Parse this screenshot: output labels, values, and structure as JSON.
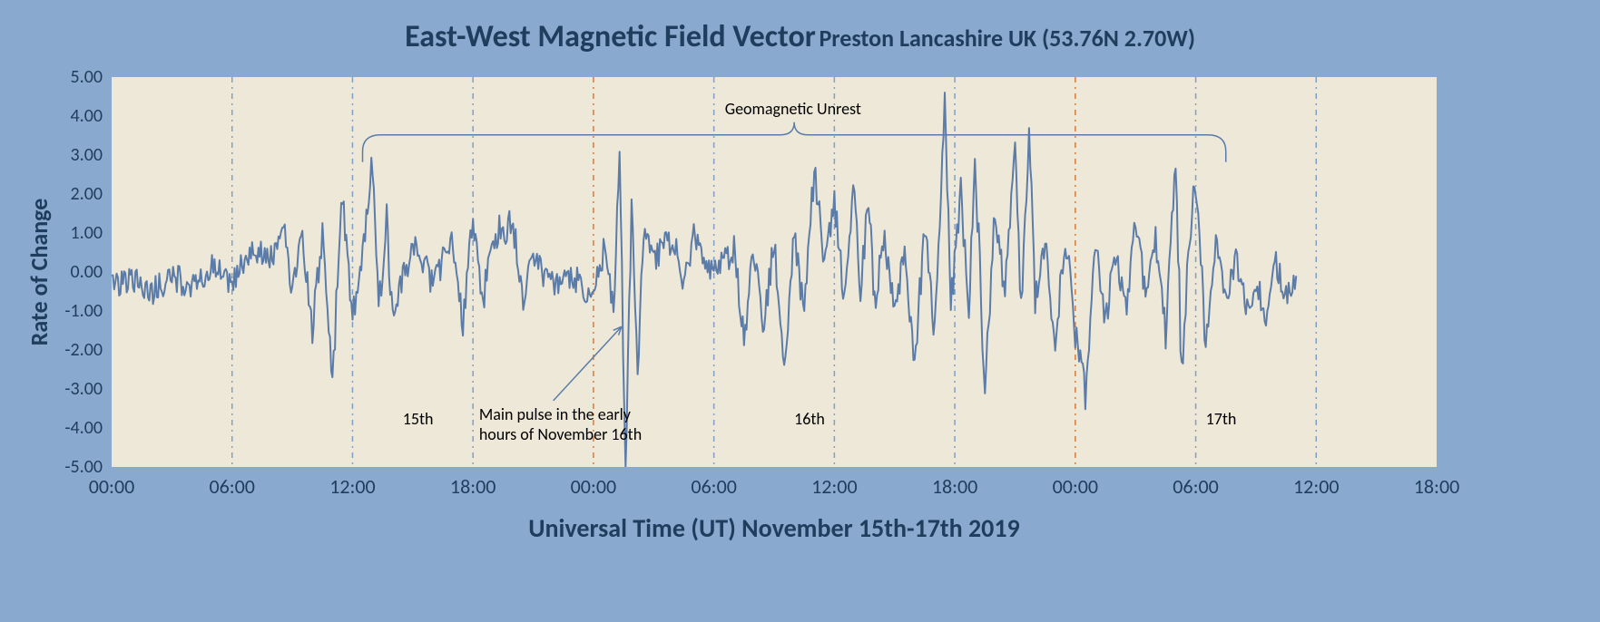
{
  "title_main": "East-West Magnetic Field Vector",
  "title_sub": "Preston Lancashire UK (53.76N 2.70W)",
  "ylabel": "Rate of Change",
  "xlabel": "Universal Time (UT) November 15th-17th 2019",
  "chart": {
    "type": "line",
    "background_color": "#eee8d8",
    "page_background": "#8aa9ce",
    "line_color": "#5b7ca8",
    "line_width": 2,
    "grid_color_blue": "#7f9fc9",
    "grid_color_orange": "#d67a3a",
    "grid_dash": "6,5,2,5",
    "text_color": "#1f3d5c",
    "title_fontsize_main": 34,
    "title_fontsize_sub": 26,
    "axis_label_fontsize": 26,
    "tick_fontsize": 20,
    "annot_fontsize": 18,
    "ylim": [
      -5,
      5
    ],
    "yticks": [
      -5,
      -4,
      -3,
      -2,
      -1,
      0,
      1,
      2,
      3,
      4,
      5
    ],
    "ytick_labels": [
      "-5.00",
      "-4.00",
      "-3.00",
      "-2.00",
      "-1.00",
      "0.00",
      "1.00",
      "2.00",
      "3.00",
      "4.00",
      "5.00"
    ],
    "xlim_hours": [
      0,
      66
    ],
    "xticks_hours": [
      0,
      6,
      12,
      18,
      24,
      30,
      36,
      42,
      48,
      54,
      60,
      66
    ],
    "xtick_labels": [
      "00:00",
      "06:00",
      "12:00",
      "18:00",
      "00:00",
      "06:00",
      "12:00",
      "18:00",
      "00:00",
      "06:00",
      "12:00",
      "18:00"
    ],
    "x_data_max_hours": 59,
    "grid_lines": [
      {
        "hour": 6,
        "color": "blue"
      },
      {
        "hour": 12,
        "color": "blue"
      },
      {
        "hour": 18,
        "color": "blue"
      },
      {
        "hour": 24,
        "color": "orange"
      },
      {
        "hour": 30,
        "color": "blue"
      },
      {
        "hour": 36,
        "color": "blue"
      },
      {
        "hour": 42,
        "color": "blue"
      },
      {
        "hour": 48,
        "color": "orange"
      },
      {
        "hour": 54,
        "color": "blue"
      },
      {
        "hour": 60,
        "color": "blue"
      }
    ],
    "annotations": {
      "geomagnetic_unrest": "Geomagnetic Unrest",
      "main_pulse_l1": "Main pulse in the early",
      "main_pulse_l2": "hours of November 16th",
      "day15": "15th",
      "day16": "16th",
      "day17": "17th"
    },
    "bracket": {
      "start_hour": 12.5,
      "end_hour": 55.5,
      "y_value": 3.1,
      "color": "#5b7ca8"
    },
    "arrow": {
      "from_hour": 22,
      "from_y": -3.3,
      "to_hour": 25.4,
      "to_y": -1.4,
      "color": "#5b7ca8"
    },
    "seed": 20191115,
    "key_points_hours_values": [
      [
        0,
        -0.3
      ],
      [
        1,
        -0.2
      ],
      [
        2,
        -0.5
      ],
      [
        3,
        -0.1
      ],
      [
        4,
        -0.4
      ],
      [
        5,
        0.1
      ],
      [
        6,
        -0.3
      ],
      [
        7,
        0.7
      ],
      [
        8,
        0.3
      ],
      [
        8.5,
        1.5
      ],
      [
        9,
        -0.5
      ],
      [
        9.5,
        0.9
      ],
      [
        10,
        -1.5
      ],
      [
        10.5,
        1.0
      ],
      [
        11,
        -2.7
      ],
      [
        11.5,
        2.0
      ],
      [
        12,
        -1.2
      ],
      [
        12.5,
        0.5
      ],
      [
        13,
        2.9
      ],
      [
        13.3,
        -1.0
      ],
      [
        13.7,
        1.3
      ],
      [
        14,
        -1.3
      ],
      [
        15,
        0.8
      ],
      [
        16,
        -0.3
      ],
      [
        17,
        0.9
      ],
      [
        17.5,
        -1.5
      ],
      [
        18,
        1.5
      ],
      [
        18.5,
        -0.8
      ],
      [
        19,
        1.0
      ],
      [
        20,
        1.2
      ],
      [
        20.5,
        -0.6
      ],
      [
        21,
        0.3
      ],
      [
        22,
        -0.4
      ],
      [
        23,
        -0.1
      ],
      [
        24,
        -0.7
      ],
      [
        24.5,
        0.5
      ],
      [
        25,
        -0.9
      ],
      [
        25.3,
        3.3
      ],
      [
        25.6,
        -4.9
      ],
      [
        25.9,
        1.5
      ],
      [
        26.2,
        -2.4
      ],
      [
        26.5,
        1.0
      ],
      [
        27,
        0.3
      ],
      [
        28,
        0.9
      ],
      [
        28.5,
        -0.4
      ],
      [
        29,
        1.0
      ],
      [
        30,
        -0.1
      ],
      [
        31,
        0.6
      ],
      [
        31.5,
        -1.7
      ],
      [
        32,
        0.6
      ],
      [
        32.5,
        -1.4
      ],
      [
        33,
        0.8
      ],
      [
        33.5,
        -2.6
      ],
      [
        34,
        1.2
      ],
      [
        34.5,
        -1.2
      ],
      [
        35,
        2.7
      ],
      [
        35.5,
        0.3
      ],
      [
        36,
        1.8
      ],
      [
        36.5,
        -0.7
      ],
      [
        37,
        2.2
      ],
      [
        37.3,
        -0.5
      ],
      [
        37.7,
        1.9
      ],
      [
        38,
        -0.8
      ],
      [
        38.5,
        1.0
      ],
      [
        39,
        -1.2
      ],
      [
        39.5,
        0.5
      ],
      [
        40,
        -2.5
      ],
      [
        40.5,
        1.3
      ],
      [
        41,
        -1.6
      ],
      [
        41.5,
        4.4
      ],
      [
        41.8,
        -0.9
      ],
      [
        42.3,
        2.0
      ],
      [
        42.7,
        -1.1
      ],
      [
        43,
        2.8
      ],
      [
        43.5,
        -2.8
      ],
      [
        44,
        1.5
      ],
      [
        44.5,
        -0.5
      ],
      [
        45,
        3.1
      ],
      [
        45.3,
        -1.0
      ],
      [
        45.7,
        3.7
      ],
      [
        46,
        -0.8
      ],
      [
        46.5,
        0.9
      ],
      [
        47,
        -2.0
      ],
      [
        47.5,
        1.0
      ],
      [
        48,
        -1.5
      ],
      [
        48.5,
        -3.2
      ],
      [
        49,
        0.7
      ],
      [
        49.5,
        -1.3
      ],
      [
        50,
        0.5
      ],
      [
        50.5,
        -1.0
      ],
      [
        51,
        1.4
      ],
      [
        51.5,
        -0.6
      ],
      [
        52,
        0.8
      ],
      [
        52.5,
        -1.5
      ],
      [
        53,
        2.8
      ],
      [
        53.3,
        -2.6
      ],
      [
        53.7,
        1.0
      ],
      [
        54,
        2.3
      ],
      [
        54.5,
        -1.8
      ],
      [
        55,
        0.7
      ],
      [
        55.5,
        -0.9
      ],
      [
        56,
        0.4
      ],
      [
        56.5,
        -1.0
      ],
      [
        57,
        -0.2
      ],
      [
        57.5,
        -1.1
      ],
      [
        58,
        0.2
      ],
      [
        58.5,
        -0.5
      ],
      [
        59,
        -0.1
      ]
    ]
  }
}
